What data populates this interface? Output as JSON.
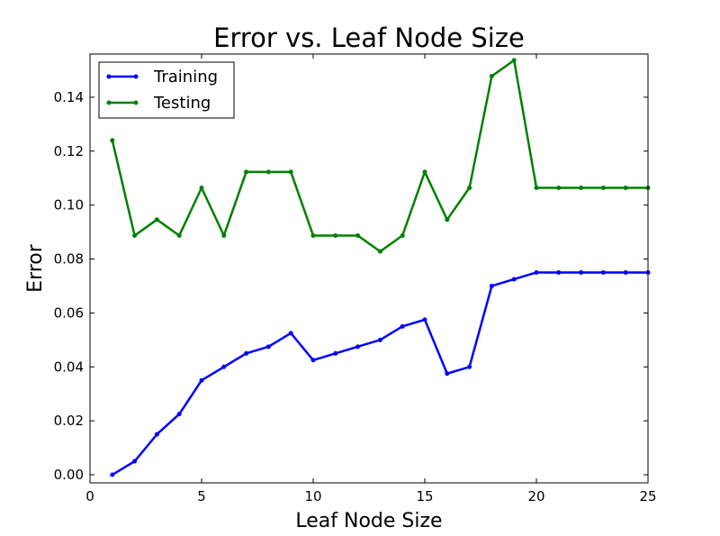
{
  "chart_data": {
    "type": "line",
    "title": "Error vs. Leaf Node Size",
    "xlabel": "Leaf Node Size",
    "ylabel": "Error",
    "xlim": [
      0,
      25
    ],
    "ylim": [
      -0.003,
      0.156
    ],
    "xticks": [
      0,
      5,
      10,
      15,
      20,
      25
    ],
    "xtick_labels": [
      "0",
      "5",
      "10",
      "15",
      "20",
      "25"
    ],
    "yticks": [
      0.0,
      0.02,
      0.04,
      0.06,
      0.08,
      0.1,
      0.12,
      0.14
    ],
    "ytick_labels": [
      "0.00",
      "0.02",
      "0.04",
      "0.06",
      "0.08",
      "0.10",
      "0.12",
      "0.14"
    ],
    "grid": false,
    "legend_position": "top-left",
    "x": [
      1,
      2,
      3,
      4,
      5,
      6,
      7,
      8,
      9,
      10,
      11,
      12,
      13,
      14,
      15,
      16,
      17,
      18,
      19,
      20,
      21,
      22,
      23,
      24,
      25
    ],
    "series": [
      {
        "name": "Training",
        "color": "#0000ff",
        "values": [
          0.0,
          0.005,
          0.015,
          0.0225,
          0.035,
          0.04,
          0.045,
          0.0475,
          0.0525,
          0.0425,
          0.045,
          0.0475,
          0.05,
          0.055,
          0.0575,
          0.0375,
          0.04,
          0.07,
          0.0725,
          0.075,
          0.075,
          0.075,
          0.075,
          0.075,
          0.075
        ]
      },
      {
        "name": "Testing",
        "color": "#008000",
        "values": [
          0.124,
          0.0887,
          0.0946,
          0.0887,
          0.1064,
          0.0887,
          0.1123,
          0.1123,
          0.1123,
          0.0887,
          0.0887,
          0.0887,
          0.0828,
          0.0887,
          0.1123,
          0.0946,
          0.1064,
          0.1478,
          0.1537,
          0.1064,
          0.1064,
          0.1064,
          0.1064,
          0.1064,
          0.1064
        ]
      }
    ]
  }
}
